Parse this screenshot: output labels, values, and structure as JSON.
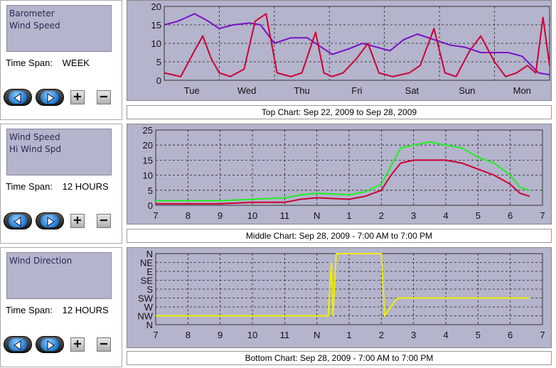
{
  "panels": [
    {
      "series": [
        "Barometer",
        "Wind Speed"
      ],
      "time_span_label": "Time Span:",
      "time_span_value": "WEEK"
    },
    {
      "series": [
        "Wind Speed",
        "Hi Wind Spd"
      ],
      "time_span_label": "Time Span:",
      "time_span_value": "12 HOURS"
    },
    {
      "series": [
        "Wind Direction"
      ],
      "time_span_label": "Time Span:",
      "time_span_value": "12 HOURS"
    }
  ],
  "buttons": {
    "plus": "+",
    "minus": "−"
  },
  "icons": {
    "back": "back-arrow-icon",
    "forward": "forward-arrow-icon"
  },
  "colors": {
    "plot_bg": "#b4b4cc",
    "barometer": "#7a10c8",
    "wind_speed": "#cc0033",
    "hi_wind": "#22ee22",
    "direction": "#eeee00"
  },
  "captions": {
    "top": "Top Chart:  Sep 22, 2009  to  Sep 28, 2009",
    "middle": "Middle Chart:  Sep 28, 2009 - 7:00 AM  to  7:00 PM",
    "bottom": "Bottom Chart:  Sep 28, 2009 - 7:00 AM  to  7:00 PM"
  },
  "chart_data": [
    {
      "type": "line",
      "title": "Top Chart:  Sep 22, 2009  to  Sep 28, 2009",
      "x_tick_labels": [
        "Tue",
        "Wed",
        "Thu",
        "Fri",
        "Sat",
        "Sun",
        "Mon"
      ],
      "y_tick_labels": [
        "0",
        "5",
        "10",
        "15",
        "20"
      ],
      "ylim": [
        0,
        20
      ],
      "xlim": [
        0,
        7
      ],
      "grid": true,
      "series": [
        {
          "name": "Barometer",
          "color": "#7a10c8",
          "x": [
            0,
            0.25,
            0.55,
            0.8,
            1.0,
            1.25,
            1.55,
            1.75,
            2.0,
            2.3,
            2.6,
            2.85,
            3.05,
            3.35,
            3.6,
            3.85,
            4.1,
            4.35,
            4.6,
            4.9,
            5.2,
            5.45,
            5.75,
            6.0,
            6.25,
            6.5,
            6.8,
            7.0
          ],
          "values": [
            15,
            16,
            18,
            16,
            14,
            15,
            15.5,
            15,
            10,
            11.5,
            11.5,
            9,
            7,
            8.5,
            10,
            9,
            8,
            11,
            12.5,
            11,
            9.5,
            9,
            7.5,
            7.5,
            7.5,
            6.5,
            2,
            1.5
          ]
        },
        {
          "name": "Wind Speed",
          "color": "#cc0033",
          "x": [
            0,
            0.3,
            0.55,
            0.7,
            0.85,
            1.0,
            1.2,
            1.45,
            1.65,
            1.85,
            2.05,
            2.3,
            2.5,
            2.75,
            2.9,
            3.05,
            3.25,
            3.5,
            3.7,
            3.9,
            4.15,
            4.45,
            4.65,
            4.9,
            5.1,
            5.3,
            5.55,
            5.75,
            6.0,
            6.2,
            6.4,
            6.6,
            6.75,
            6.88,
            7.0
          ],
          "values": [
            2,
            1,
            8,
            12,
            6,
            2,
            1,
            3,
            16,
            18,
            2,
            1,
            2,
            13,
            2,
            1,
            2,
            6,
            10,
            2,
            1,
            2,
            4,
            14,
            2,
            1,
            8,
            12,
            5,
            1,
            2,
            4,
            2,
            17,
            4
          ]
        }
      ]
    },
    {
      "type": "line",
      "title": "Middle Chart:  Sep 28, 2009 - 7:00 AM  to  7:00 PM",
      "x_tick_labels": [
        "7",
        "8",
        "9",
        "10",
        "11",
        "N",
        "1",
        "2",
        "3",
        "4",
        "5",
        "6",
        "7"
      ],
      "y_tick_labels": [
        "0",
        "5",
        "10",
        "15",
        "20",
        "25"
      ],
      "ylim": [
        0,
        25
      ],
      "xlim": [
        7,
        19
      ],
      "grid": true,
      "series": [
        {
          "name": "Wind Speed",
          "color": "#cc0033",
          "x": [
            7,
            8,
            9,
            10,
            11,
            11.5,
            12,
            13,
            13.5,
            14,
            14.3,
            14.6,
            15,
            15.5,
            16,
            16.5,
            17,
            17.5,
            18,
            18.3,
            18.6
          ],
          "values": [
            0.5,
            0.5,
            0.5,
            1,
            1,
            2,
            2.5,
            2,
            3,
            5,
            10,
            14,
            15,
            15,
            15,
            14,
            12,
            10,
            7,
            4,
            3
          ]
        },
        {
          "name": "Hi Wind Spd",
          "color": "#22ee22",
          "x": [
            7,
            8,
            9,
            10,
            11,
            11.5,
            12,
            13,
            13.5,
            14,
            14.3,
            14.6,
            15,
            15.5,
            16,
            16.5,
            17,
            17.5,
            18,
            18.3,
            18.6
          ],
          "values": [
            1.5,
            1.5,
            1.5,
            2,
            2.5,
            3.5,
            4,
            3.5,
            4.5,
            7,
            13,
            19,
            20,
            21,
            20,
            19,
            16,
            14,
            10,
            6,
            5
          ]
        }
      ]
    },
    {
      "type": "line",
      "title": "Bottom Chart:  Sep 28, 2009 - 7:00 AM  to  7:00 PM",
      "x_tick_labels": [
        "7",
        "8",
        "9",
        "10",
        "11",
        "N",
        "1",
        "2",
        "3",
        "4",
        "5",
        "6",
        "7"
      ],
      "y_tick_labels": [
        "N",
        "NW",
        "W",
        "SW",
        "S",
        "SE",
        "E",
        "NE",
        "N"
      ],
      "xlim": [
        7,
        19
      ],
      "grid": true,
      "series": [
        {
          "name": "Wind Direction",
          "color": "#eeee00",
          "x": [
            7,
            8,
            9,
            10,
            11,
            11.6,
            12.1,
            12.35,
            12.45,
            12.5,
            12.6,
            12.7,
            13,
            13.5,
            14,
            14.1,
            14.3,
            14.5,
            14.7,
            15,
            16,
            17,
            18,
            18.6
          ],
          "values": [
            "NW",
            "NW",
            "NW",
            "NW",
            "NW",
            "NW",
            "NW",
            "NW",
            "NE",
            "NW",
            "N",
            "N",
            "N",
            "N",
            "N",
            "NW",
            "W",
            "SW",
            "SW",
            "SW",
            "SW",
            "SW",
            "SW",
            "SW"
          ]
        }
      ]
    }
  ]
}
